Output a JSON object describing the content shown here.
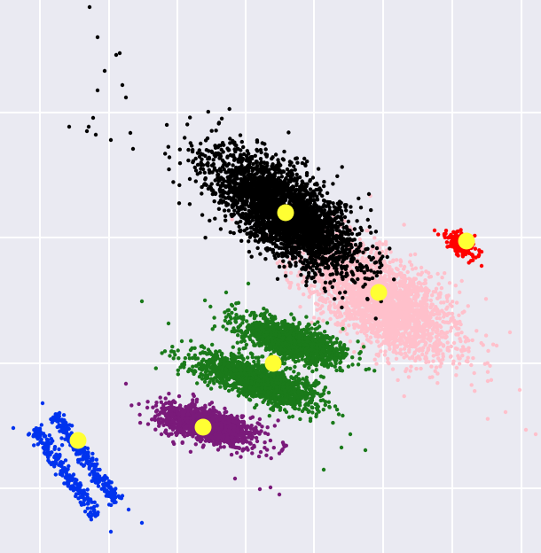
{
  "chart_data": {
    "type": "scatter",
    "title": "",
    "xlabel": "",
    "ylabel": "",
    "grid": true,
    "legend": false,
    "background_color": "#eaeaf2",
    "grid_color": "#ffffff",
    "centroid_color": "#ffff33",
    "clusters": [
      {
        "id": "black",
        "color": "#000000",
        "shape": "elongated",
        "center": [
          322,
          240
        ],
        "spread": [
          95,
          40
        ],
        "angle_deg": 37,
        "count": 3200,
        "outliers": [
          [
            101,
            8
          ],
          [
            110,
            42
          ],
          [
            131,
            62
          ],
          [
            135,
            60
          ],
          [
            118,
            80
          ],
          [
            110,
            102
          ],
          [
            138,
            96
          ],
          [
            142,
            110
          ],
          [
            78,
            143
          ],
          [
            105,
            133
          ],
          [
            100,
            143
          ],
          [
            108,
            152
          ],
          [
            125,
            158
          ],
          [
            150,
            168
          ],
          [
            98,
            148
          ],
          [
            147,
            150
          ]
        ],
        "centroid": [
          322,
          240
        ]
      },
      {
        "id": "pink",
        "color": "#ffc0cb",
        "shape": "elongated",
        "center": [
          430,
          340
        ],
        "spread": [
          95,
          45
        ],
        "angle_deg": 32,
        "count": 2600,
        "outliers": [
          [
            560,
            390
          ],
          [
            575,
            375
          ],
          [
            586,
            440
          ],
          [
            593,
            485
          ],
          [
            604,
            490
          ],
          [
            570,
            465
          ],
          [
            550,
            430
          ]
        ],
        "centroid": [
          427,
          330
        ]
      },
      {
        "id": "red",
        "color": "#ff0000",
        "shape": "blob",
        "center": [
          520,
          275
        ],
        "spread": [
          20,
          10
        ],
        "angle_deg": 30,
        "count": 250,
        "outliers": [
          [
            490,
            260
          ],
          [
            543,
            300
          ]
        ],
        "centroid": [
          526,
          272
        ]
      },
      {
        "id": "green",
        "color": "#1a7a1a",
        "shape": "elongated",
        "center": [
          330,
          385
        ],
        "spread": [
          60,
          18
        ],
        "angle_deg": 18,
        "count": 1400,
        "outliers": [
          [
            255,
            330
          ],
          [
            262,
            345
          ],
          [
            280,
            320
          ],
          [
            395,
            490
          ],
          [
            412,
            508
          ],
          [
            385,
            505
          ],
          [
            365,
            530
          ],
          [
            160,
            340
          ],
          [
            190,
            365
          ]
        ],
        "centroid": [
          308,
          410
        ]
      },
      {
        "id": "green2",
        "color": "#1a7a1a",
        "shape": "elongated",
        "center": [
          290,
          430
        ],
        "spread": [
          70,
          20
        ],
        "angle_deg": 18,
        "count": 1500,
        "outliers": [
          [
            205,
            385
          ],
          [
            215,
            395
          ],
          [
            330,
            470
          ],
          [
            350,
            475
          ]
        ],
        "centroid": [
          308,
          410
        ]
      },
      {
        "id": "purple",
        "color": "#7a1a7a",
        "shape": "blob",
        "center": [
          235,
          480
        ],
        "spread": [
          55,
          18
        ],
        "angle_deg": 15,
        "count": 1300,
        "outliers": [
          [
            142,
            433
          ],
          [
            182,
            490
          ],
          [
            265,
            540
          ],
          [
            293,
            552
          ],
          [
            305,
            550
          ],
          [
            315,
            558
          ]
        ],
        "centroid": [
          229,
          482
        ]
      },
      {
        "id": "blue",
        "color": "#0033ee",
        "shape": "diagonal",
        "center": [
          85,
          525
        ],
        "spread": [
          55,
          10
        ],
        "angle_deg": 55,
        "count": 500,
        "outliers": [
          [
            48,
            455
          ],
          [
            15,
            483
          ],
          [
            125,
            600
          ],
          [
            160,
            590
          ],
          [
            145,
            575
          ]
        ],
        "centroid": [
          88,
          497
        ]
      }
    ]
  }
}
